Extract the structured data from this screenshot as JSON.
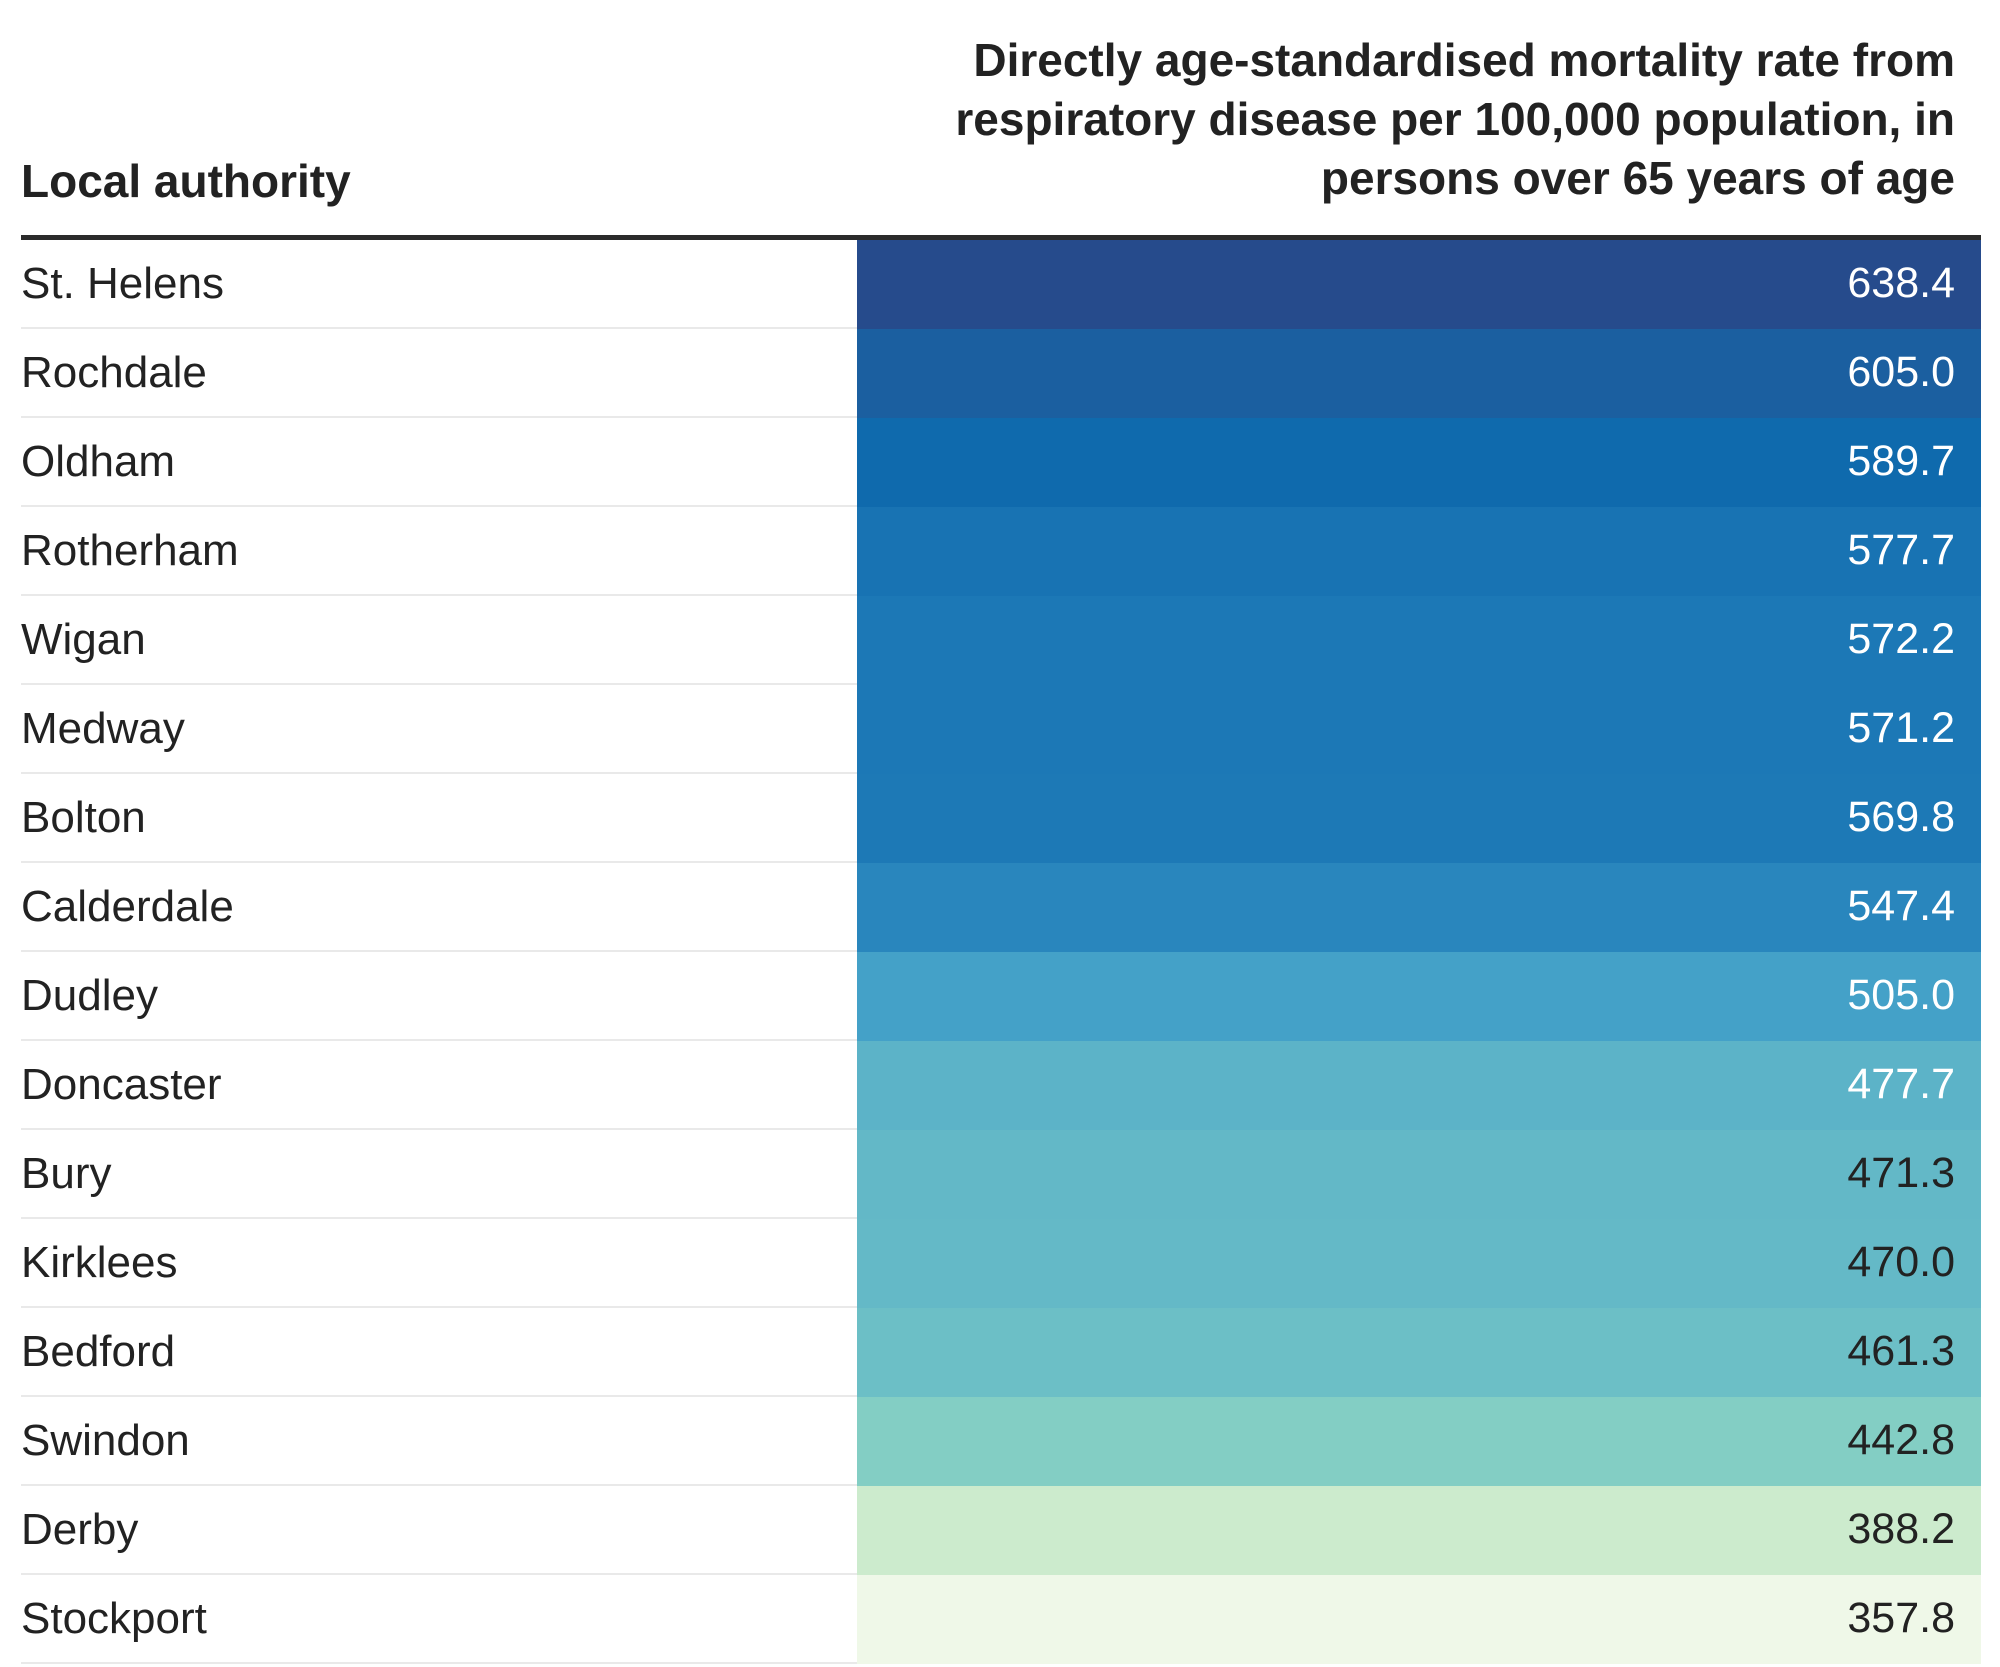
{
  "header": {
    "left": "Local authority",
    "right": "Directly age-standardised mortality rate from respiratory disease per 100,000 population, in persons over 65 years of age"
  },
  "chart_data": {
    "type": "table",
    "columns": [
      "Local authority",
      "Directly age-standardised mortality rate from respiratory disease per 100,000 population, in persons over 65 years of age"
    ],
    "rows": [
      {
        "name": "St. Helens",
        "value": "638.4",
        "color": "#264b8c",
        "text_color": "#ffffff"
      },
      {
        "name": "Rochdale",
        "value": "605.0",
        "color": "#1b5fa0",
        "text_color": "#ffffff"
      },
      {
        "name": "Oldham",
        "value": "589.7",
        "color": "#0f6aad",
        "text_color": "#ffffff"
      },
      {
        "name": "Rotherham",
        "value": "577.7",
        "color": "#1873b3",
        "text_color": "#ffffff"
      },
      {
        "name": "Wigan",
        "value": "572.2",
        "color": "#1c78b6",
        "text_color": "#ffffff"
      },
      {
        "name": "Medway",
        "value": "571.2",
        "color": "#1c78b6",
        "text_color": "#ffffff"
      },
      {
        "name": "Bolton",
        "value": "569.8",
        "color": "#1d79b6",
        "text_color": "#ffffff"
      },
      {
        "name": "Calderdale",
        "value": "547.4",
        "color": "#2986bd",
        "text_color": "#ffffff"
      },
      {
        "name": "Dudley",
        "value": "505.0",
        "color": "#44a1c8",
        "text_color": "#ffffff"
      },
      {
        "name": "Doncaster",
        "value": "477.7",
        "color": "#5cb3c8",
        "text_color": "#ffffff"
      },
      {
        "name": "Bury",
        "value": "471.3",
        "color": "#63b8c7",
        "text_color": "#222222"
      },
      {
        "name": "Kirklees",
        "value": "470.0",
        "color": "#64b9c7",
        "text_color": "#222222"
      },
      {
        "name": "Bedford",
        "value": "461.3",
        "color": "#6cbfc6",
        "text_color": "#222222"
      },
      {
        "name": "Swindon",
        "value": "442.8",
        "color": "#83cec4",
        "text_color": "#222222"
      },
      {
        "name": "Derby",
        "value": "388.2",
        "color": "#ccebcd",
        "text_color": "#222222"
      },
      {
        "name": "Stockport",
        "value": "357.8",
        "color": "#eff8e8",
        "text_color": "#222222"
      }
    ]
  }
}
